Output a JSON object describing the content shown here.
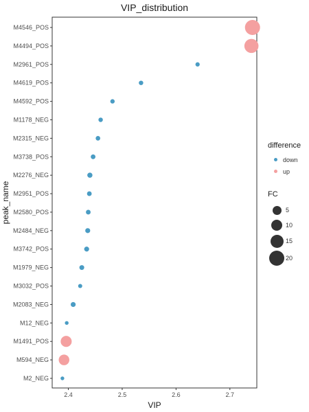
{
  "chart_data": {
    "type": "scatter",
    "title": "VIP_distribution",
    "xlabel": "VIP",
    "ylabel": "peak_name",
    "xlim": [
      2.37,
      2.75
    ],
    "x_ticks": [
      "2.4",
      "2.5",
      "2.6",
      "2.7"
    ],
    "x_tick_values": [
      2.4,
      2.5,
      2.6,
      2.7
    ],
    "grid": false,
    "legend_placement": "right",
    "colors": {
      "down": "#4a9cc4",
      "up": "#f4a0a0"
    },
    "points": [
      {
        "name": "M4546_POS",
        "vip": 2.742,
        "difference": "up",
        "fc": 22
      },
      {
        "name": "M4494_POS",
        "vip": 2.74,
        "difference": "up",
        "fc": 18
      },
      {
        "name": "M2961_POS",
        "vip": 2.64,
        "difference": "down",
        "fc": 0.5
      },
      {
        "name": "M4619_POS",
        "vip": 2.535,
        "difference": "down",
        "fc": 0.6
      },
      {
        "name": "M4592_POS",
        "vip": 2.482,
        "difference": "down",
        "fc": 0.55
      },
      {
        "name": "M1178_NEG",
        "vip": 2.46,
        "difference": "down",
        "fc": 0.6
      },
      {
        "name": "M2315_NEG",
        "vip": 2.455,
        "difference": "down",
        "fc": 0.7
      },
      {
        "name": "M3738_POS",
        "vip": 2.446,
        "difference": "down",
        "fc": 0.8
      },
      {
        "name": "M2276_NEG",
        "vip": 2.44,
        "difference": "down",
        "fc": 1.2
      },
      {
        "name": "M2951_POS",
        "vip": 2.439,
        "difference": "down",
        "fc": 0.8
      },
      {
        "name": "M2580_POS",
        "vip": 2.437,
        "difference": "down",
        "fc": 0.8
      },
      {
        "name": "M2484_NEG",
        "vip": 2.436,
        "difference": "down",
        "fc": 1.0
      },
      {
        "name": "M3742_POS",
        "vip": 2.434,
        "difference": "down",
        "fc": 1.0
      },
      {
        "name": "M1979_NEG",
        "vip": 2.425,
        "difference": "down",
        "fc": 0.9
      },
      {
        "name": "M3032_POS",
        "vip": 2.422,
        "difference": "down",
        "fc": 0.4
      },
      {
        "name": "M2083_NEG",
        "vip": 2.409,
        "difference": "down",
        "fc": 1.0
      },
      {
        "name": "M12_NEG",
        "vip": 2.397,
        "difference": "down",
        "fc": 0.2
      },
      {
        "name": "M1491_POS",
        "vip": 2.396,
        "difference": "up",
        "fc": 8
      },
      {
        "name": "M594_NEG",
        "vip": 2.392,
        "difference": "up",
        "fc": 7
      },
      {
        "name": "M2_NEG",
        "vip": 2.389,
        "difference": "down",
        "fc": 0.2
      }
    ],
    "legend": {
      "color_title": "difference",
      "color_items": [
        "down",
        "up"
      ],
      "size_title": "FC",
      "size_items": [
        "5",
        "10",
        "15",
        "20"
      ],
      "size_values": [
        5,
        10,
        15,
        20
      ]
    }
  }
}
